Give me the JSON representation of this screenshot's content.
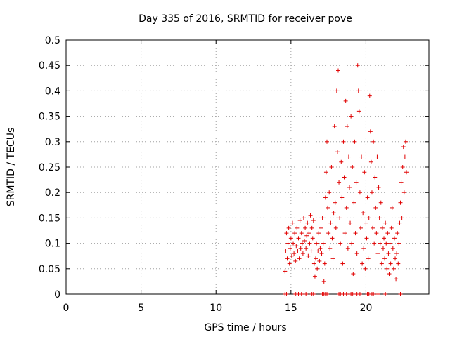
{
  "chart_data": {
    "type": "scatter",
    "title": "Day 335 of 2016, SRMTID for receiver pove",
    "xlabel": "GPS time / hours",
    "ylabel": "SRMTID / TECUs",
    "xlim": [
      0,
      24.2
    ],
    "ylim": [
      0,
      0.5
    ],
    "xticks": [
      0,
      5,
      10,
      15,
      20
    ],
    "yticks": [
      0,
      0.05,
      0.1,
      0.15,
      0.2,
      0.25,
      0.3,
      0.35,
      0.4,
      0.45,
      0.5
    ],
    "grid": true,
    "marker": "+",
    "series": [
      {
        "name": "SRMTID",
        "color": "#e00000",
        "points": [
          [
            14.6,
            0.045
          ],
          [
            14.65,
            0.085
          ],
          [
            14.7,
            0.12
          ],
          [
            14.75,
            0.07
          ],
          [
            14.8,
            0.1
          ],
          [
            14.85,
            0.13
          ],
          [
            14.9,
            0.06
          ],
          [
            14.95,
            0.09
          ],
          [
            15.0,
            0.11
          ],
          [
            15.05,
            0.075
          ],
          [
            15.1,
            0.14
          ],
          [
            15.15,
            0.1
          ],
          [
            15.2,
            0.08
          ],
          [
            15.25,
            0.12
          ],
          [
            15.3,
            0.065
          ],
          [
            15.35,
            0.095
          ],
          [
            15.4,
            0.13
          ],
          [
            15.45,
            0.085
          ],
          [
            15.5,
            0.11
          ],
          [
            15.55,
            0.07
          ],
          [
            15.6,
            0.145
          ],
          [
            15.65,
            0.09
          ],
          [
            15.7,
            0.12
          ],
          [
            15.75,
            0.1
          ],
          [
            15.8,
            0.08
          ],
          [
            15.85,
            0.15
          ],
          [
            15.9,
            0.105
          ],
          [
            15.95,
            0.13
          ],
          [
            16.0,
            0.09
          ],
          [
            16.05,
            0.115
          ],
          [
            16.1,
            0.14
          ],
          [
            16.15,
            0.075
          ],
          [
            16.2,
            0.12
          ],
          [
            16.25,
            0.1
          ],
          [
            16.3,
            0.155
          ],
          [
            16.35,
            0.085
          ],
          [
            16.4,
            0.13
          ],
          [
            16.45,
            0.11
          ],
          [
            16.5,
            0.145
          ],
          [
            16.55,
            0.06
          ],
          [
            16.6,
            0.035
          ],
          [
            16.65,
            0.07
          ],
          [
            16.7,
            0.1
          ],
          [
            16.75,
            0.05
          ],
          [
            16.8,
            0.085
          ],
          [
            16.85,
            0.12
          ],
          [
            16.9,
            0.065
          ],
          [
            16.95,
            0.09
          ],
          [
            17.0,
            0.13
          ],
          [
            17.05,
            0.08
          ],
          [
            17.1,
            0.15
          ],
          [
            17.15,
            0.1
          ],
          [
            17.2,
            0.025
          ],
          [
            17.25,
            0.06
          ],
          [
            17.3,
            0.19
          ],
          [
            17.35,
            0.24
          ],
          [
            17.4,
            0.3
          ],
          [
            17.45,
            0.17
          ],
          [
            17.5,
            0.12
          ],
          [
            17.55,
            0.2
          ],
          [
            17.6,
            0.09
          ],
          [
            17.65,
            0.14
          ],
          [
            17.7,
            0.25
          ],
          [
            17.75,
            0.11
          ],
          [
            17.8,
            0.07
          ],
          [
            17.85,
            0.16
          ],
          [
            17.9,
            0.33
          ],
          [
            17.95,
            0.18
          ],
          [
            18.0,
            0.13
          ],
          [
            18.05,
            0.4
          ],
          [
            18.1,
            0.28
          ],
          [
            18.15,
            0.44
          ],
          [
            18.2,
            0.22
          ],
          [
            18.25,
            0.15
          ],
          [
            18.3,
            0.1
          ],
          [
            18.35,
            0.26
          ],
          [
            18.4,
            0.19
          ],
          [
            18.45,
            0.06
          ],
          [
            18.5,
            0.3
          ],
          [
            18.55,
            0.23
          ],
          [
            18.6,
            0.12
          ],
          [
            18.65,
            0.38
          ],
          [
            18.7,
            0.17
          ],
          [
            18.75,
            0.33
          ],
          [
            18.8,
            0.09
          ],
          [
            18.85,
            0.27
          ],
          [
            18.9,
            0.21
          ],
          [
            18.95,
            0.14
          ],
          [
            19.0,
            0.35
          ],
          [
            19.05,
            0.1
          ],
          [
            19.1,
            0.25
          ],
          [
            19.15,
            0.04
          ],
          [
            19.2,
            0.18
          ],
          [
            19.25,
            0.3
          ],
          [
            19.3,
            0.12
          ],
          [
            19.35,
            0.22
          ],
          [
            19.4,
            0.08
          ],
          [
            19.45,
            0.45
          ],
          [
            19.5,
            0.4
          ],
          [
            19.55,
            0.36
          ],
          [
            19.6,
            0.2
          ],
          [
            19.65,
            0.13
          ],
          [
            19.7,
            0.27
          ],
          [
            19.75,
            0.06
          ],
          [
            19.8,
            0.16
          ],
          [
            19.85,
            0.09
          ],
          [
            19.9,
            0.24
          ],
          [
            19.95,
            0.05
          ],
          [
            20.0,
            0.14
          ],
          [
            20.05,
            0.11
          ],
          [
            20.1,
            0.19
          ],
          [
            20.15,
            0.07
          ],
          [
            20.2,
            0.15
          ],
          [
            20.25,
            0.39
          ],
          [
            20.3,
            0.32
          ],
          [
            20.35,
            0.26
          ],
          [
            20.4,
            0.2
          ],
          [
            20.45,
            0.13
          ],
          [
            20.5,
            0.3
          ],
          [
            20.55,
            0.1
          ],
          [
            20.6,
            0.23
          ],
          [
            20.65,
            0.17
          ],
          [
            20.7,
            0.12
          ],
          [
            20.75,
            0.27
          ],
          [
            20.8,
            0.08
          ],
          [
            20.85,
            0.21
          ],
          [
            20.9,
            0.15
          ],
          [
            20.95,
            0.1
          ],
          [
            21.0,
            0.18
          ],
          [
            21.05,
            0.06
          ],
          [
            21.1,
            0.13
          ],
          [
            21.15,
            0.09
          ],
          [
            21.2,
            0.11
          ],
          [
            21.25,
            0.07
          ],
          [
            21.3,
            0.14
          ],
          [
            21.35,
            0.1
          ],
          [
            21.4,
            0.05
          ],
          [
            21.45,
            0.12
          ],
          [
            21.5,
            0.08
          ],
          [
            21.55,
            0.04
          ],
          [
            21.6,
            0.1
          ],
          [
            21.65,
            0.06
          ],
          [
            21.7,
            0.13
          ],
          [
            21.75,
            0.17
          ],
          [
            21.8,
            0.09
          ],
          [
            21.85,
            0.05
          ],
          [
            21.9,
            0.11
          ],
          [
            21.95,
            0.07
          ],
          [
            22.0,
            0.03
          ],
          [
            22.05,
            0.08
          ],
          [
            22.1,
            0.12
          ],
          [
            22.15,
            0.06
          ],
          [
            22.2,
            0.1
          ],
          [
            22.25,
            0.14
          ],
          [
            22.3,
            0.18
          ],
          [
            22.35,
            0.22
          ],
          [
            22.4,
            0.15
          ],
          [
            22.45,
            0.25
          ],
          [
            22.5,
            0.29
          ],
          [
            22.55,
            0.2
          ],
          [
            22.6,
            0.27
          ],
          [
            22.65,
            0.3
          ],
          [
            22.7,
            0.24
          ],
          [
            14.6,
            0.0
          ],
          [
            14.7,
            0.0
          ],
          [
            15.3,
            0.0
          ],
          [
            15.4,
            0.0
          ],
          [
            15.5,
            0.0
          ],
          [
            15.7,
            0.0
          ],
          [
            16.0,
            0.0
          ],
          [
            16.4,
            0.0
          ],
          [
            16.5,
            0.0
          ],
          [
            17.1,
            0.0
          ],
          [
            17.2,
            0.0
          ],
          [
            17.3,
            0.0
          ],
          [
            17.4,
            0.0
          ],
          [
            18.2,
            0.0
          ],
          [
            18.3,
            0.0
          ],
          [
            18.5,
            0.0
          ],
          [
            18.7,
            0.0
          ],
          [
            19.0,
            0.0
          ],
          [
            19.1,
            0.0
          ],
          [
            19.2,
            0.0
          ],
          [
            19.4,
            0.0
          ],
          [
            19.6,
            0.0
          ],
          [
            20.1,
            0.0
          ],
          [
            20.2,
            0.0
          ],
          [
            20.4,
            0.0
          ],
          [
            20.5,
            0.0
          ],
          [
            20.8,
            0.0
          ],
          [
            21.3,
            0.0
          ],
          [
            22.3,
            0.0
          ]
        ]
      }
    ]
  }
}
